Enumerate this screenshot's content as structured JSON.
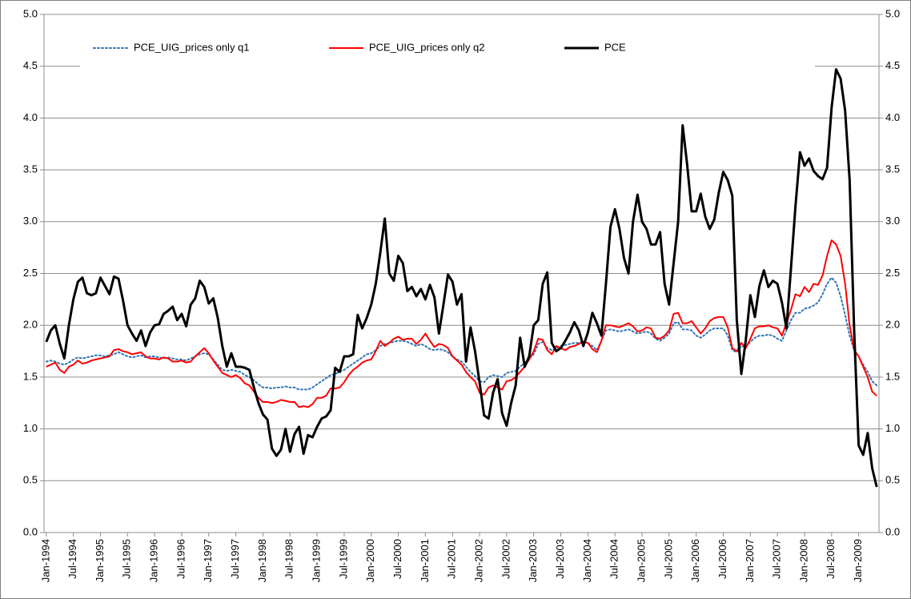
{
  "chart_data": {
    "type": "line",
    "categories": [
      "Jan-1994",
      null,
      null,
      null,
      null,
      null,
      "Jul-1994",
      null,
      null,
      null,
      null,
      null,
      "Jan-1995",
      null,
      null,
      null,
      null,
      null,
      "Jul-1995",
      null,
      null,
      null,
      null,
      null,
      "Jan-1996",
      null,
      null,
      null,
      null,
      null,
      "Jul-1996",
      null,
      null,
      null,
      null,
      null,
      "Jan-1997",
      null,
      null,
      null,
      null,
      null,
      "Jul-1997",
      null,
      null,
      null,
      null,
      null,
      "Jan-1998",
      null,
      null,
      null,
      null,
      null,
      "Jul-1998",
      null,
      null,
      null,
      null,
      null,
      "Jan-1999",
      null,
      null,
      null,
      null,
      null,
      "Jul-1999",
      null,
      null,
      null,
      null,
      null,
      "Jan-2000",
      null,
      null,
      null,
      null,
      null,
      "Jul-2000",
      null,
      null,
      null,
      null,
      null,
      "Jan-2001",
      null,
      null,
      null,
      null,
      null,
      "Jul-2001",
      null,
      null,
      null,
      null,
      null,
      "Jan-2002",
      null,
      null,
      null,
      null,
      null,
      "Jul-2002",
      null,
      null,
      null,
      null,
      null,
      "Jan-2003",
      null,
      null,
      null,
      null,
      null,
      "Jul-2003",
      null,
      null,
      null,
      null,
      null,
      "Jan-2004",
      null,
      null,
      null,
      null,
      null,
      "Jul-2004",
      null,
      null,
      null,
      null,
      null,
      "Jan-2005",
      null,
      null,
      null,
      null,
      null,
      "Jul-2005",
      null,
      null,
      null,
      null,
      null,
      "Jan-2006",
      null,
      null,
      null,
      null,
      null,
      "Jul-2006",
      null,
      null,
      null,
      null,
      null,
      "Jan-2007",
      null,
      null,
      null,
      null,
      null,
      "Jul-2007",
      null,
      null,
      null,
      null,
      null,
      "Jan-2008",
      null,
      null,
      null,
      null,
      null,
      "Jul-2008",
      null,
      null,
      null,
      null,
      null,
      "Jan-2009",
      null,
      null,
      null,
      null
    ],
    "series": [
      {
        "name": "PCE_UIG_prices only q1",
        "color": "#2e75b6",
        "dash": "dotted",
        "values": [
          1.65,
          1.66,
          1.65,
          1.63,
          1.62,
          1.64,
          1.67,
          1.69,
          1.68,
          1.69,
          1.7,
          1.71,
          1.71,
          1.7,
          1.71,
          1.72,
          1.74,
          1.72,
          1.7,
          1.69,
          1.7,
          1.71,
          1.69,
          1.7,
          1.7,
          1.69,
          1.68,
          1.69,
          1.68,
          1.67,
          1.67,
          1.66,
          1.68,
          1.7,
          1.72,
          1.73,
          1.72,
          1.67,
          1.62,
          1.57,
          1.56,
          1.57,
          1.56,
          1.55,
          1.52,
          1.5,
          1.47,
          1.43,
          1.4,
          1.4,
          1.39,
          1.4,
          1.4,
          1.41,
          1.4,
          1.4,
          1.38,
          1.38,
          1.38,
          1.4,
          1.43,
          1.46,
          1.49,
          1.52,
          1.53,
          1.55,
          1.57,
          1.6,
          1.63,
          1.66,
          1.69,
          1.72,
          1.73,
          1.76,
          1.8,
          1.82,
          1.83,
          1.84,
          1.85,
          1.85,
          1.84,
          1.82,
          1.8,
          1.82,
          1.8,
          1.77,
          1.76,
          1.77,
          1.76,
          1.74,
          1.7,
          1.67,
          1.65,
          1.6,
          1.55,
          1.51,
          1.46,
          1.45,
          1.5,
          1.52,
          1.51,
          1.5,
          1.54,
          1.55,
          1.56,
          1.6,
          1.64,
          1.68,
          1.72,
          1.82,
          1.84,
          1.78,
          1.76,
          1.78,
          1.8,
          1.81,
          1.82,
          1.83,
          1.83,
          1.84,
          1.83,
          1.8,
          1.76,
          1.85,
          1.95,
          1.96,
          1.95,
          1.94,
          1.95,
          1.96,
          1.94,
          1.92,
          1.93,
          1.94,
          1.92,
          1.87,
          1.85,
          1.88,
          1.92,
          2.02,
          2.03,
          1.96,
          1.96,
          1.95,
          1.9,
          1.88,
          1.91,
          1.95,
          1.97,
          1.97,
          1.97,
          1.9,
          1.76,
          1.74,
          1.8,
          1.79,
          1.84,
          1.88,
          1.9,
          1.9,
          1.91,
          1.9,
          1.87,
          1.85,
          1.95,
          2.05,
          2.12,
          2.12,
          2.16,
          2.17,
          2.19,
          2.22,
          2.3,
          2.4,
          2.46,
          2.41,
          2.28,
          2.1,
          1.9,
          1.76,
          1.7,
          1.62,
          1.55,
          1.46,
          1.42
        ]
      },
      {
        "name": "PCE_UIG_prices only q2",
        "color": "#ff0000",
        "dash": "solid",
        "values": [
          1.6,
          1.62,
          1.64,
          1.57,
          1.54,
          1.6,
          1.62,
          1.66,
          1.63,
          1.64,
          1.66,
          1.67,
          1.68,
          1.69,
          1.7,
          1.76,
          1.77,
          1.75,
          1.74,
          1.72,
          1.73,
          1.74,
          1.7,
          1.68,
          1.68,
          1.67,
          1.69,
          1.68,
          1.65,
          1.65,
          1.66,
          1.64,
          1.65,
          1.7,
          1.74,
          1.78,
          1.73,
          1.66,
          1.6,
          1.54,
          1.52,
          1.5,
          1.52,
          1.49,
          1.44,
          1.42,
          1.36,
          1.3,
          1.26,
          1.26,
          1.25,
          1.26,
          1.28,
          1.27,
          1.26,
          1.26,
          1.21,
          1.22,
          1.21,
          1.24,
          1.3,
          1.3,
          1.32,
          1.39,
          1.39,
          1.4,
          1.45,
          1.52,
          1.57,
          1.6,
          1.64,
          1.66,
          1.67,
          1.75,
          1.85,
          1.8,
          1.83,
          1.87,
          1.89,
          1.86,
          1.87,
          1.87,
          1.82,
          1.86,
          1.92,
          1.85,
          1.79,
          1.82,
          1.81,
          1.78,
          1.7,
          1.66,
          1.62,
          1.55,
          1.5,
          1.46,
          1.35,
          1.33,
          1.4,
          1.42,
          1.4,
          1.38,
          1.46,
          1.47,
          1.5,
          1.55,
          1.6,
          1.67,
          1.75,
          1.87,
          1.86,
          1.76,
          1.72,
          1.8,
          1.78,
          1.76,
          1.79,
          1.8,
          1.82,
          1.84,
          1.83,
          1.77,
          1.74,
          1.85,
          2.0,
          2.0,
          1.99,
          1.98,
          2.0,
          2.02,
          1.99,
          1.94,
          1.95,
          1.98,
          1.97,
          1.88,
          1.87,
          1.9,
          1.95,
          2.11,
          2.12,
          2.02,
          2.02,
          2.04,
          1.98,
          1.92,
          1.97,
          2.04,
          2.07,
          2.08,
          2.08,
          1.98,
          1.78,
          1.75,
          1.83,
          1.78,
          1.87,
          1.97,
          1.99,
          1.99,
          2.0,
          1.98,
          1.97,
          1.9,
          2.02,
          2.15,
          2.3,
          2.28,
          2.37,
          2.32,
          2.4,
          2.39,
          2.48,
          2.67,
          2.82,
          2.78,
          2.67,
          2.4,
          2.0,
          1.76,
          1.7,
          1.6,
          1.5,
          1.36,
          1.32
        ]
      },
      {
        "name": "PCE",
        "color": "#000000",
        "dash": "solid",
        "values": [
          1.84,
          1.95,
          2.0,
          1.82,
          1.68,
          2.0,
          2.25,
          2.42,
          2.46,
          2.31,
          2.29,
          2.31,
          2.46,
          2.38,
          2.3,
          2.47,
          2.45,
          2.24,
          2.0,
          1.92,
          1.85,
          1.95,
          1.8,
          1.93,
          2.0,
          2.01,
          2.11,
          2.14,
          2.18,
          2.05,
          2.11,
          1.99,
          2.2,
          2.26,
          2.43,
          2.37,
          2.21,
          2.26,
          2.07,
          1.8,
          1.6,
          1.73,
          1.6,
          1.6,
          1.59,
          1.57,
          1.4,
          1.25,
          1.14,
          1.09,
          0.81,
          0.74,
          0.8,
          1.0,
          0.78,
          0.95,
          1.02,
          0.76,
          0.94,
          0.92,
          1.02,
          1.1,
          1.12,
          1.18,
          1.59,
          1.55,
          1.7,
          1.7,
          1.72,
          2.1,
          1.97,
          2.07,
          2.2,
          2.4,
          2.7,
          3.03,
          2.5,
          2.43,
          2.67,
          2.6,
          2.33,
          2.37,
          2.28,
          2.35,
          2.25,
          2.39,
          2.27,
          1.92,
          2.2,
          2.49,
          2.42,
          2.2,
          2.3,
          1.65,
          1.98,
          1.75,
          1.45,
          1.13,
          1.1,
          1.35,
          1.48,
          1.15,
          1.03,
          1.25,
          1.42,
          1.88,
          1.6,
          1.7,
          2.0,
          2.05,
          2.4,
          2.51,
          1.83,
          1.75,
          1.78,
          1.85,
          1.93,
          2.03,
          1.95,
          1.8,
          1.93,
          2.12,
          2.02,
          1.9,
          2.4,
          2.95,
          3.12,
          2.93,
          2.65,
          2.5,
          3.0,
          3.26,
          3.0,
          2.93,
          2.78,
          2.78,
          2.9,
          2.4,
          2.2,
          2.6,
          3.0,
          3.93,
          3.55,
          3.1,
          3.1,
          3.27,
          3.05,
          2.93,
          3.02,
          3.28,
          3.48,
          3.4,
          3.25,
          2.05,
          1.53,
          1.86,
          2.29,
          2.08,
          2.38,
          2.53,
          2.37,
          2.43,
          2.4,
          2.22,
          1.97,
          2.55,
          3.15,
          3.67,
          3.54,
          3.61,
          3.49,
          3.44,
          3.41,
          3.52,
          4.1,
          4.47,
          4.38,
          4.07,
          3.4,
          1.95,
          0.84,
          0.75,
          0.96,
          0.62,
          0.44
        ]
      }
    ],
    "ylim": [
      0,
      5
    ],
    "yticks": [
      {
        "value": 0,
        "label": "0.0"
      },
      {
        "value": 0.5,
        "label": "0.5"
      },
      {
        "value": 1,
        "label": "1.0"
      },
      {
        "value": 1.5,
        "label": "1.5"
      },
      {
        "value": 2,
        "label": "2.0"
      },
      {
        "value": 2.5,
        "label": "2.5"
      },
      {
        "value": 3,
        "label": "3.0"
      },
      {
        "value": 3.5,
        "label": "3.5"
      },
      {
        "value": 4,
        "label": "4.0"
      },
      {
        "value": 4.5,
        "label": "4.5"
      },
      {
        "value": 5,
        "label": "5.0"
      }
    ],
    "y2lim": [
      0,
      5
    ],
    "y2ticks": [
      {
        "value": 0,
        "label": "0.0"
      },
      {
        "value": 0.5,
        "label": "0.5"
      },
      {
        "value": 1,
        "label": "1.0"
      },
      {
        "value": 1.5,
        "label": "1.5"
      },
      {
        "value": 2,
        "label": "2.0"
      },
      {
        "value": 2.5,
        "label": "2.5"
      },
      {
        "value": 3,
        "label": "3.0"
      },
      {
        "value": 3.5,
        "label": "3.5"
      },
      {
        "value": 4,
        "label": "4.0"
      },
      {
        "value": 4.5,
        "label": "4.5"
      },
      {
        "value": 5,
        "label": "5.0"
      }
    ],
    "grid": true,
    "legend": "top"
  }
}
